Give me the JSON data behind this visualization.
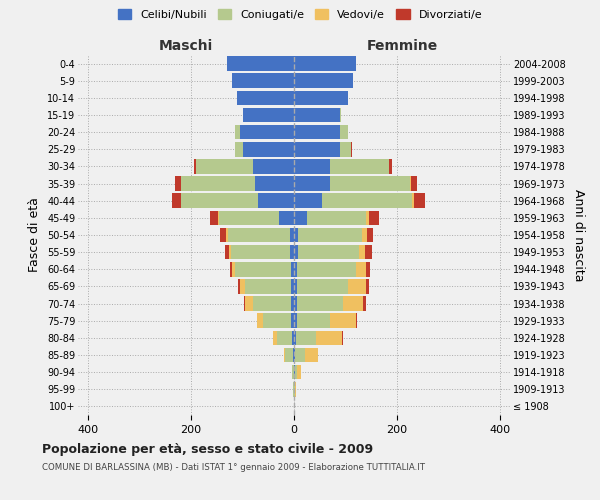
{
  "age_groups": [
    "100+",
    "95-99",
    "90-94",
    "85-89",
    "80-84",
    "75-79",
    "70-74",
    "65-69",
    "60-64",
    "55-59",
    "50-54",
    "45-49",
    "40-44",
    "35-39",
    "30-34",
    "25-29",
    "20-24",
    "15-19",
    "10-14",
    "5-9",
    "0-4"
  ],
  "birth_years": [
    "≤ 1908",
    "1909-1913",
    "1914-1918",
    "1919-1923",
    "1924-1928",
    "1929-1933",
    "1934-1938",
    "1939-1943",
    "1944-1948",
    "1949-1953",
    "1954-1958",
    "1959-1963",
    "1964-1968",
    "1969-1973",
    "1974-1978",
    "1979-1983",
    "1984-1988",
    "1989-1993",
    "1994-1998",
    "1999-2003",
    "2004-2008"
  ],
  "males": {
    "celibi": [
      0,
      0,
      0,
      2,
      3,
      5,
      5,
      5,
      5,
      7,
      8,
      30,
      70,
      75,
      80,
      100,
      105,
      100,
      110,
      120,
      130
    ],
    "coniugati": [
      0,
      1,
      3,
      15,
      30,
      55,
      75,
      90,
      110,
      115,
      120,
      115,
      150,
      145,
      110,
      15,
      10,
      0,
      0,
      0,
      0
    ],
    "vedovi": [
      0,
      0,
      1,
      3,
      8,
      12,
      15,
      10,
      5,
      5,
      5,
      3,
      0,
      0,
      0,
      0,
      0,
      0,
      0,
      0,
      0
    ],
    "divorziati": [
      0,
      0,
      0,
      0,
      0,
      0,
      2,
      3,
      5,
      8,
      10,
      15,
      18,
      12,
      5,
      0,
      0,
      0,
      0,
      0,
      0
    ]
  },
  "females": {
    "nubili": [
      0,
      0,
      1,
      2,
      3,
      5,
      5,
      5,
      5,
      7,
      8,
      25,
      55,
      70,
      70,
      90,
      90,
      90,
      105,
      115,
      120
    ],
    "coniugate": [
      0,
      1,
      5,
      20,
      40,
      65,
      90,
      100,
      115,
      120,
      125,
      115,
      175,
      155,
      115,
      20,
      15,
      2,
      0,
      0,
      0
    ],
    "vedove": [
      0,
      2,
      8,
      25,
      50,
      50,
      40,
      35,
      20,
      12,
      8,
      5,
      3,
      2,
      0,
      0,
      0,
      0,
      0,
      0,
      0
    ],
    "divorziate": [
      0,
      0,
      0,
      0,
      2,
      3,
      5,
      5,
      8,
      12,
      12,
      20,
      22,
      12,
      5,
      2,
      0,
      0,
      0,
      0,
      0
    ]
  },
  "colors": {
    "celibi_nubili": "#4472c4",
    "coniugati": "#b5c98e",
    "vedovi": "#f0c060",
    "divorziati": "#c0392b"
  },
  "xlim": [
    -420,
    420
  ],
  "xticks": [
    -400,
    -200,
    0,
    200,
    400
  ],
  "xticklabels": [
    "400",
    "200",
    "0",
    "200",
    "400"
  ],
  "title": "Popolazione per età, sesso e stato civile - 2009",
  "subtitle": "COMUNE DI BARLASSINA (MB) - Dati ISTAT 1° gennaio 2009 - Elaborazione TUTTITALIA.IT",
  "ylabel_left": "Fasce di età",
  "ylabel_right": "Anni di nascita",
  "header_left": "Maschi",
  "header_right": "Femmine",
  "background_color": "#f0f0f0",
  "bar_height": 0.85,
  "legend_labels": [
    "Celibi/Nubili",
    "Coniugati/e",
    "Vedovi/e",
    "Divorziati/e"
  ]
}
